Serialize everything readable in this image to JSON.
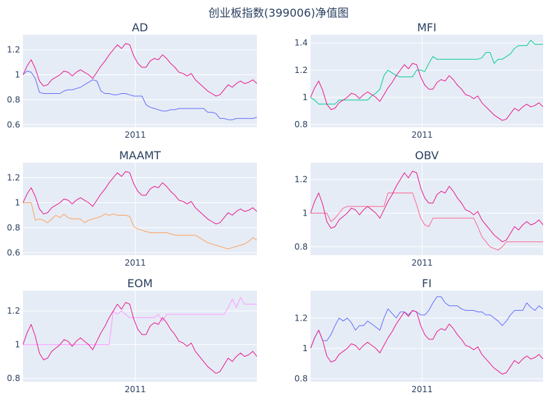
{
  "figure": {
    "title": "创业板指数(399006)净值图"
  },
  "colors": {
    "index": "#e8198b",
    "background": "#e5ecf6",
    "grid": "#ffffff"
  },
  "chart_data": [
    {
      "type": "line",
      "title": "AD",
      "x_tick_label": "2011",
      "ylim": [
        0.58,
        1.32
      ],
      "yticks": [
        0.6,
        0.8,
        1,
        1.2
      ],
      "ytick_labels": [
        "0.6",
        "0.8",
        "1",
        "1.2"
      ],
      "indicator_color": "#636efa",
      "series": [
        {
          "kind": "index",
          "values": [
            1.0,
            1.07,
            1.12,
            1.05,
            0.95,
            0.91,
            0.92,
            0.96,
            0.98,
            1.0,
            1.03,
            1.02,
            0.99,
            1.02,
            1.04,
            1.02,
            1.0,
            0.97,
            1.02,
            1.07,
            1.11,
            1.16,
            1.2,
            1.24,
            1.21,
            1.25,
            1.24,
            1.15,
            1.09,
            1.06,
            1.06,
            1.11,
            1.13,
            1.12,
            1.16,
            1.13,
            1.09,
            1.06,
            1.02,
            1.01,
            0.99,
            1.01,
            0.96,
            0.93,
            0.9,
            0.87,
            0.85,
            0.83,
            0.84,
            0.88,
            0.92,
            0.9,
            0.93,
            0.95,
            0.93,
            0.94,
            0.96,
            0.93
          ]
        },
        {
          "kind": "indicator",
          "values": [
            1.0,
            1.03,
            1.02,
            0.97,
            0.86,
            0.85,
            0.85,
            0.85,
            0.85,
            0.85,
            0.87,
            0.88,
            0.88,
            0.89,
            0.9,
            0.92,
            0.94,
            0.96,
            0.95,
            0.87,
            0.85,
            0.85,
            0.84,
            0.84,
            0.85,
            0.85,
            0.84,
            0.83,
            0.83,
            0.83,
            0.76,
            0.74,
            0.73,
            0.72,
            0.71,
            0.71,
            0.72,
            0.72,
            0.73,
            0.73,
            0.73,
            0.73,
            0.73,
            0.73,
            0.73,
            0.7,
            0.7,
            0.69,
            0.65,
            0.65,
            0.64,
            0.64,
            0.65,
            0.65,
            0.65,
            0.65,
            0.65,
            0.66
          ]
        }
      ]
    },
    {
      "type": "line",
      "title": "MFI",
      "x_tick_label": "2011",
      "ylim": [
        0.78,
        1.46
      ],
      "yticks": [
        0.8,
        1,
        1.2,
        1.4
      ],
      "ytick_labels": [
        "0.8",
        "1",
        "1.2",
        "1.4"
      ],
      "indicator_color": "#00cc96",
      "series": [
        {
          "kind": "index",
          "values": [
            1.0,
            1.07,
            1.12,
            1.05,
            0.95,
            0.91,
            0.92,
            0.96,
            0.98,
            1.0,
            1.03,
            1.02,
            0.99,
            1.02,
            1.04,
            1.02,
            1.0,
            0.97,
            1.02,
            1.07,
            1.11,
            1.16,
            1.2,
            1.24,
            1.21,
            1.25,
            1.24,
            1.15,
            1.09,
            1.06,
            1.06,
            1.11,
            1.13,
            1.12,
            1.16,
            1.13,
            1.09,
            1.06,
            1.02,
            1.01,
            0.99,
            1.01,
            0.96,
            0.93,
            0.9,
            0.87,
            0.85,
            0.83,
            0.84,
            0.88,
            0.92,
            0.9,
            0.93,
            0.95,
            0.93,
            0.94,
            0.96,
            0.93
          ]
        },
        {
          "kind": "indicator",
          "values": [
            1.0,
            0.98,
            0.95,
            0.95,
            0.95,
            0.95,
            0.95,
            0.98,
            0.98,
            0.98,
            0.98,
            0.98,
            0.98,
            0.98,
            0.98,
            1.01,
            1.03,
            1.06,
            1.16,
            1.2,
            1.18,
            1.16,
            1.15,
            1.15,
            1.15,
            1.15,
            1.2,
            1.2,
            1.19,
            1.25,
            1.3,
            1.28,
            1.28,
            1.28,
            1.28,
            1.28,
            1.28,
            1.28,
            1.28,
            1.28,
            1.28,
            1.28,
            1.29,
            1.33,
            1.33,
            1.25,
            1.28,
            1.28,
            1.3,
            1.32,
            1.36,
            1.38,
            1.38,
            1.38,
            1.42,
            1.39,
            1.39,
            1.39
          ]
        }
      ]
    },
    {
      "type": "line",
      "title": "MAAMT",
      "x_tick_label": "2011",
      "ylim": [
        0.58,
        1.32
      ],
      "yticks": [
        0.6,
        0.8,
        1,
        1.2
      ],
      "ytick_labels": [
        "0.6",
        "0.8",
        "1",
        "1.2"
      ],
      "indicator_color": "#ffa15a",
      "series": [
        {
          "kind": "index",
          "values": [
            1.0,
            1.07,
            1.12,
            1.05,
            0.95,
            0.91,
            0.92,
            0.96,
            0.98,
            1.0,
            1.03,
            1.02,
            0.99,
            1.02,
            1.04,
            1.02,
            1.0,
            0.97,
            1.02,
            1.07,
            1.11,
            1.16,
            1.2,
            1.24,
            1.21,
            1.25,
            1.24,
            1.15,
            1.09,
            1.06,
            1.06,
            1.11,
            1.13,
            1.12,
            1.16,
            1.13,
            1.09,
            1.06,
            1.02,
            1.01,
            0.99,
            1.01,
            0.96,
            0.93,
            0.9,
            0.87,
            0.85,
            0.83,
            0.84,
            0.88,
            0.92,
            0.9,
            0.93,
            0.95,
            0.93,
            0.94,
            0.96,
            0.93
          ]
        },
        {
          "kind": "indicator",
          "values": [
            1.0,
            1.0,
            1.0,
            0.86,
            0.87,
            0.86,
            0.84,
            0.87,
            0.9,
            0.88,
            0.91,
            0.88,
            0.87,
            0.87,
            0.87,
            0.84,
            0.86,
            0.87,
            0.88,
            0.89,
            0.91,
            0.9,
            0.91,
            0.9,
            0.9,
            0.9,
            0.89,
            0.81,
            0.79,
            0.78,
            0.77,
            0.76,
            0.76,
            0.76,
            0.76,
            0.76,
            0.75,
            0.74,
            0.74,
            0.74,
            0.74,
            0.74,
            0.74,
            0.72,
            0.7,
            0.68,
            0.67,
            0.66,
            0.65,
            0.64,
            0.63,
            0.64,
            0.65,
            0.66,
            0.67,
            0.69,
            0.72,
            0.7
          ]
        }
      ]
    },
    {
      "type": "line",
      "title": "OBV",
      "x_tick_label": "2011",
      "ylim": [
        0.75,
        1.3
      ],
      "yticks": [
        0.8,
        1,
        1.2
      ],
      "ytick_labels": [
        "0.8",
        "1",
        "1.2"
      ],
      "indicator_color": "#ff6692",
      "series": [
        {
          "kind": "index",
          "values": [
            1.0,
            1.07,
            1.12,
            1.05,
            0.95,
            0.91,
            0.92,
            0.96,
            0.98,
            1.0,
            1.03,
            1.02,
            0.99,
            1.02,
            1.04,
            1.02,
            1.0,
            0.97,
            1.02,
            1.07,
            1.11,
            1.16,
            1.2,
            1.24,
            1.21,
            1.25,
            1.24,
            1.15,
            1.09,
            1.06,
            1.06,
            1.11,
            1.13,
            1.12,
            1.16,
            1.13,
            1.09,
            1.06,
            1.02,
            1.01,
            0.99,
            1.01,
            0.96,
            0.93,
            0.9,
            0.87,
            0.85,
            0.83,
            0.84,
            0.88,
            0.92,
            0.9,
            0.93,
            0.95,
            0.93,
            0.94,
            0.96,
            0.93
          ]
        },
        {
          "kind": "indicator",
          "values": [
            1.0,
            1.0,
            1.0,
            1.0,
            1.0,
            0.95,
            0.97,
            1.0,
            1.03,
            1.04,
            1.04,
            1.04,
            1.04,
            1.04,
            1.04,
            1.04,
            1.04,
            1.04,
            1.04,
            1.12,
            1.12,
            1.12,
            1.12,
            1.12,
            1.12,
            1.12,
            1.05,
            0.97,
            0.93,
            0.92,
            0.97,
            0.97,
            0.97,
            0.97,
            0.97,
            0.97,
            0.97,
            0.97,
            0.97,
            0.97,
            0.97,
            0.92,
            0.86,
            0.83,
            0.8,
            0.79,
            0.78,
            0.8,
            0.83,
            0.83,
            0.83,
            0.83,
            0.83,
            0.83,
            0.83,
            0.83,
            0.83,
            0.83
          ]
        }
      ]
    },
    {
      "type": "line",
      "title": "EOM",
      "x_tick_label": "2011",
      "ylim": [
        0.78,
        1.32
      ],
      "yticks": [
        0.8,
        1,
        1.2
      ],
      "ytick_labels": [
        "0.8",
        "1",
        "1.2"
      ],
      "indicator_color": "#ff97ff",
      "series": [
        {
          "kind": "index",
          "values": [
            1.0,
            1.07,
            1.12,
            1.05,
            0.95,
            0.91,
            0.92,
            0.96,
            0.98,
            1.0,
            1.03,
            1.02,
            0.99,
            1.02,
            1.04,
            1.02,
            1.0,
            0.97,
            1.02,
            1.07,
            1.11,
            1.16,
            1.2,
            1.24,
            1.21,
            1.25,
            1.24,
            1.15,
            1.09,
            1.06,
            1.06,
            1.11,
            1.13,
            1.12,
            1.16,
            1.13,
            1.09,
            1.06,
            1.02,
            1.01,
            0.99,
            1.01,
            0.96,
            0.93,
            0.9,
            0.87,
            0.85,
            0.83,
            0.84,
            0.88,
            0.92,
            0.9,
            0.93,
            0.95,
            0.93,
            0.94,
            0.96,
            0.93
          ]
        },
        {
          "kind": "indicator",
          "values": [
            1.0,
            1.0,
            1.0,
            1.0,
            1.0,
            1.0,
            1.0,
            1.0,
            1.0,
            1.0,
            1.0,
            1.0,
            1.0,
            1.0,
            1.0,
            1.0,
            1.0,
            1.0,
            1.0,
            1.0,
            1.0,
            1.0,
            1.2,
            1.18,
            1.2,
            1.18,
            1.16,
            1.16,
            1.16,
            1.16,
            1.16,
            1.16,
            1.16,
            1.18,
            1.14,
            1.18,
            1.18,
            1.18,
            1.18,
            1.18,
            1.18,
            1.18,
            1.18,
            1.18,
            1.18,
            1.18,
            1.18,
            1.18,
            1.18,
            1.18,
            1.22,
            1.27,
            1.22,
            1.28,
            1.24,
            1.24,
            1.24,
            1.24
          ]
        }
      ]
    },
    {
      "type": "line",
      "title": "FI",
      "x_tick_label": "2011",
      "ylim": [
        0.78,
        1.38
      ],
      "yticks": [
        0.8,
        1,
        1.2
      ],
      "ytick_labels": [
        "0.8",
        "1",
        "1.2"
      ],
      "indicator_color": "#636efa",
      "series": [
        {
          "kind": "index",
          "values": [
            1.0,
            1.07,
            1.12,
            1.05,
            0.95,
            0.91,
            0.92,
            0.96,
            0.98,
            1.0,
            1.03,
            1.02,
            0.99,
            1.02,
            1.04,
            1.02,
            1.0,
            0.97,
            1.02,
            1.07,
            1.11,
            1.16,
            1.2,
            1.24,
            1.21,
            1.25,
            1.24,
            1.15,
            1.09,
            1.06,
            1.06,
            1.11,
            1.13,
            1.12,
            1.16,
            1.13,
            1.09,
            1.06,
            1.02,
            1.01,
            0.99,
            1.01,
            0.96,
            0.93,
            0.9,
            0.87,
            0.85,
            0.83,
            0.84,
            0.88,
            0.92,
            0.9,
            0.93,
            0.95,
            0.93,
            0.94,
            0.96,
            0.93
          ]
        },
        {
          "kind": "indicator",
          "values": [
            1.0,
            1.07,
            1.12,
            1.05,
            1.05,
            1.09,
            1.15,
            1.2,
            1.18,
            1.2,
            1.17,
            1.12,
            1.15,
            1.15,
            1.18,
            1.16,
            1.14,
            1.12,
            1.2,
            1.26,
            1.23,
            1.2,
            1.24,
            1.24,
            1.22,
            1.25,
            1.24,
            1.22,
            1.22,
            1.25,
            1.3,
            1.34,
            1.34,
            1.3,
            1.28,
            1.28,
            1.28,
            1.26,
            1.25,
            1.25,
            1.25,
            1.24,
            1.24,
            1.22,
            1.22,
            1.2,
            1.18,
            1.15,
            1.18,
            1.22,
            1.25,
            1.25,
            1.25,
            1.3,
            1.27,
            1.25,
            1.28,
            1.26
          ]
        }
      ]
    }
  ]
}
